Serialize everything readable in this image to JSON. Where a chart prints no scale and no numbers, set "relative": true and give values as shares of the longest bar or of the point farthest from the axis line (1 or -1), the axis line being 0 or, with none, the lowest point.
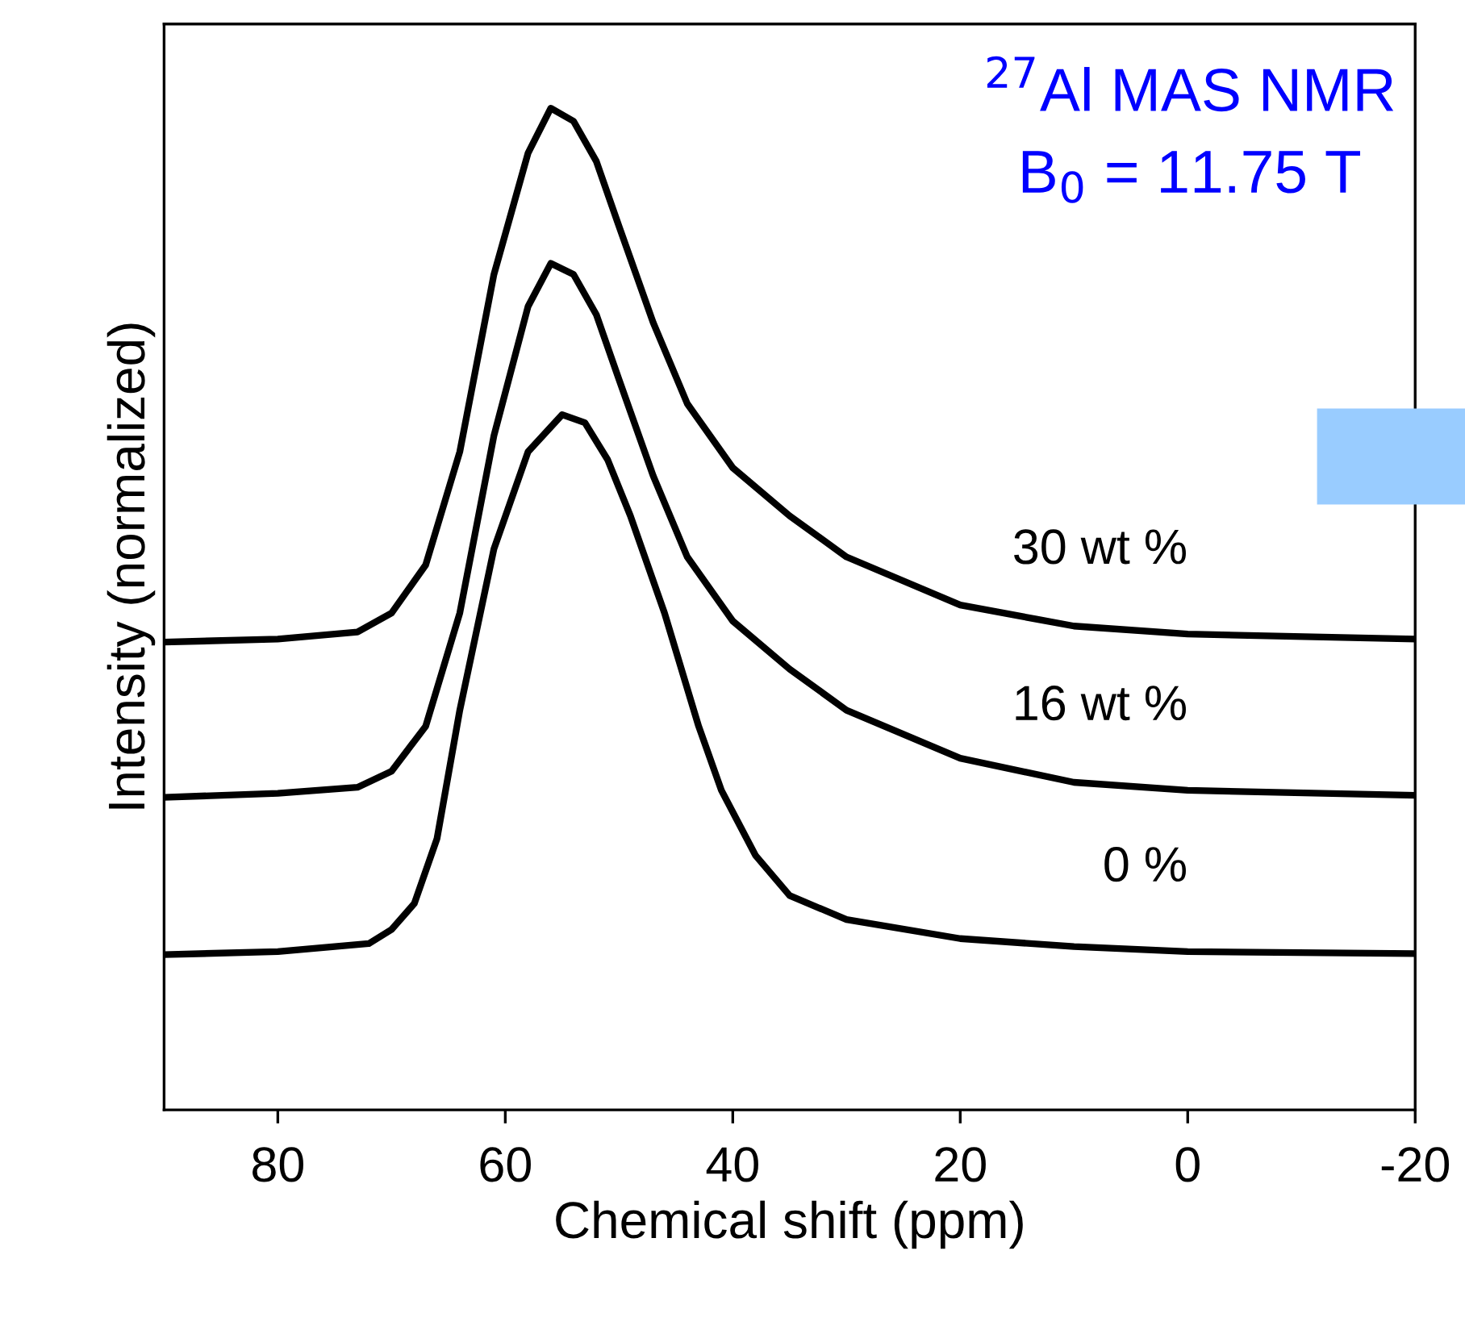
{
  "chart_data": {
    "type": "line",
    "relative": true,
    "xlabel": "Chemical shift (ppm)",
    "ylabel": "Intensity (normalized)",
    "xlim": [
      90,
      -20
    ],
    "xticks": [
      80,
      60,
      40,
      20,
      0,
      {
        "value": -20,
        "label": "-20"
      }
    ],
    "grid": false,
    "marker": "none",
    "line_style": "solid",
    "annotations": [
      "$^{27}$Al MAS NMR",
      "B$_{0}$ = 11.75 T"
    ],
    "series": [
      {
        "name": "30 wt %",
        "color": "#000000",
        "x": [
          90,
          80,
          73,
          70,
          67,
          64,
          61,
          58,
          56,
          54,
          52,
          50,
          47,
          44,
          40,
          35,
          30,
          20,
          10,
          0,
          -20
        ],
        "values": [
          0.467,
          0.47,
          0.477,
          0.496,
          0.544,
          0.657,
          0.834,
          0.955,
          1.0,
          0.987,
          0.947,
          0.882,
          0.786,
          0.705,
          0.641,
          0.593,
          0.552,
          0.504,
          0.483,
          0.475,
          0.47
        ]
      },
      {
        "name": "16 wt %",
        "color": "#000000",
        "x": [
          90,
          80,
          73,
          70,
          67,
          64,
          61,
          58,
          56,
          54,
          52,
          50,
          47,
          44,
          40,
          35,
          30,
          20,
          10,
          0,
          -20
        ],
        "values": [
          0.312,
          0.316,
          0.322,
          0.338,
          0.383,
          0.496,
          0.673,
          0.802,
          0.845,
          0.834,
          0.794,
          0.729,
          0.633,
          0.552,
          0.488,
          0.44,
          0.399,
          0.351,
          0.327,
          0.319,
          0.314
        ]
      },
      {
        "name": "0 %",
        "color": "#000000",
        "x": [
          90,
          80,
          72,
          70,
          68,
          66,
          64,
          61,
          58,
          55,
          53,
          51,
          49,
          46,
          43,
          41,
          38,
          35,
          30,
          20,
          10,
          0,
          -20
        ],
        "values": [
          0.155,
          0.158,
          0.166,
          0.18,
          0.206,
          0.271,
          0.399,
          0.56,
          0.657,
          0.694,
          0.686,
          0.649,
          0.593,
          0.496,
          0.383,
          0.319,
          0.254,
          0.214,
          0.19,
          0.171,
          0.163,
          0.158,
          0.156
        ]
      }
    ]
  }
}
